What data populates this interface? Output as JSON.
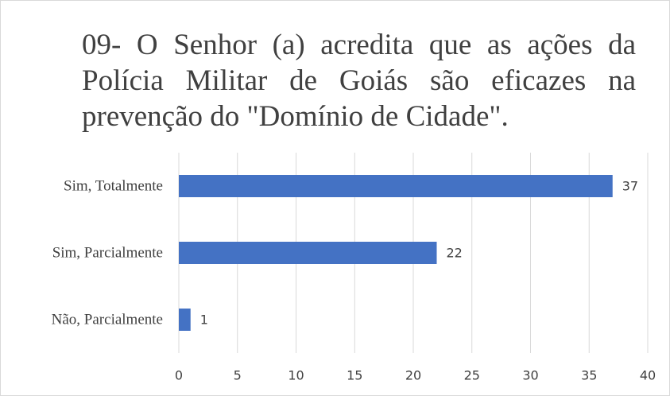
{
  "chart_data": {
    "type": "bar",
    "orientation": "horizontal",
    "title": "09- O Senhor (a) acredita que as ações da Polícia Militar de Goiás são eficazes na prevenção do \"Domínio de Cidade\".",
    "categories": [
      "Sim, Totalmente",
      "Sim, Parcialmente",
      "Não, Parcialmente"
    ],
    "values": [
      37,
      22,
      1
    ],
    "color": "#4472c4",
    "xlim": [
      0,
      40
    ],
    "xticks": [
      0,
      5,
      10,
      15,
      20,
      25,
      30,
      35,
      40
    ],
    "grid": true
  }
}
